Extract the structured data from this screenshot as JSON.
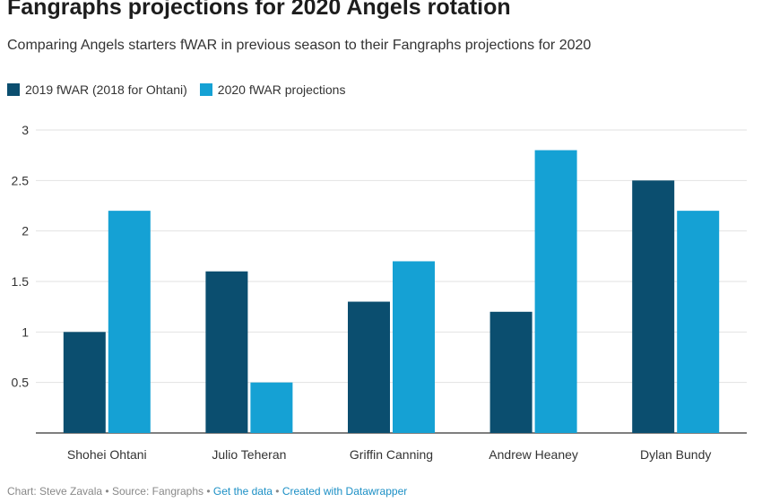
{
  "title": "Fangraphs projections for 2020 Angels rotation",
  "subtitle": "Comparing Angels starters fWAR in previous season to their Fangraphs projections for 2020",
  "footer": {
    "credit": "Chart: Steve Zavala",
    "separator": "•",
    "source": "Source: Fangraphs",
    "get_data": "Get the data",
    "created_with": "Created with Datawrapper"
  },
  "chart_data": {
    "type": "bar",
    "categories": [
      "Shohei Ohtani",
      "Julio Teheran",
      "Griffin Canning",
      "Andrew Heaney",
      "Dylan Bundy"
    ],
    "series": [
      {
        "name": "2019 fWAR (2018 for Ohtani)",
        "color": "#0b4e6f",
        "values": [
          1.0,
          1.6,
          1.3,
          1.2,
          2.5
        ]
      },
      {
        "name": "2020 fWAR projections",
        "color": "#15a1d4",
        "values": [
          2.2,
          0.5,
          1.7,
          2.8,
          2.2
        ]
      }
    ],
    "yticks": [
      "0.5",
      "1",
      "1.5",
      "2",
      "2.5",
      "3"
    ],
    "ylim": [
      0,
      3
    ],
    "grid": true,
    "legend_position": "top-left"
  }
}
